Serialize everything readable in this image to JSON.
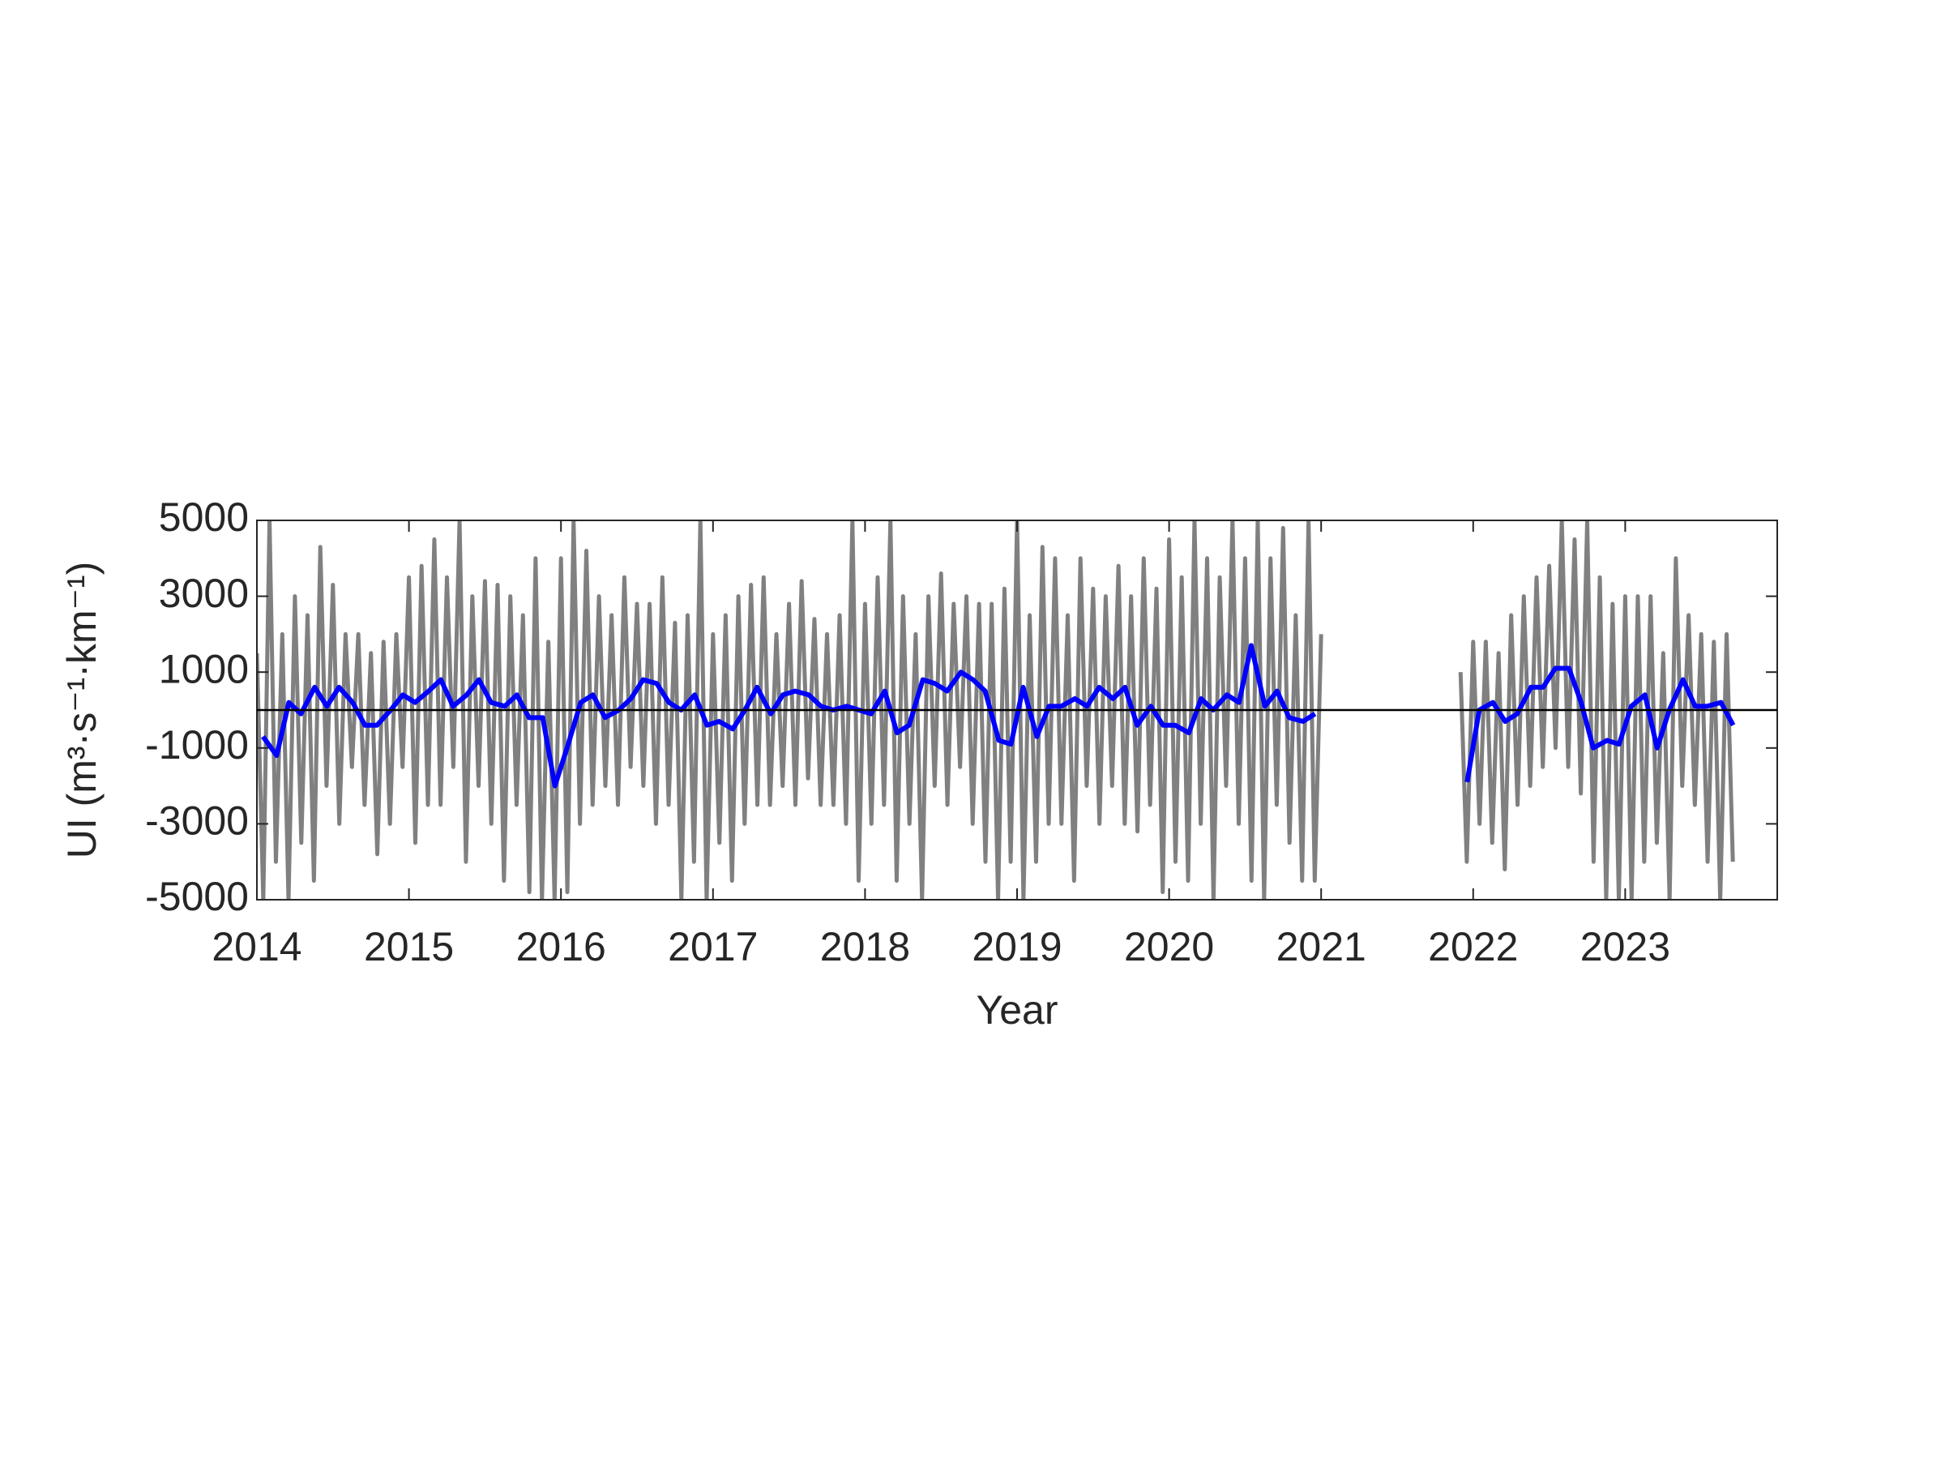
{
  "chart_data": {
    "type": "line",
    "xlabel": "Year",
    "ylabel": "UI (m³·s⁻¹·km⁻¹)",
    "xlim": [
      2014,
      2024
    ],
    "ylim": [
      -5000,
      5000
    ],
    "xticks": [
      2014,
      2015,
      2016,
      2017,
      2018,
      2019,
      2020,
      2021,
      2022,
      2023
    ],
    "yticks": [
      -5000,
      -3000,
      -1000,
      1000,
      3000,
      5000
    ],
    "hline": 0,
    "series": [
      {
        "color": "#808080",
        "x": [
          2014,
          2014.042,
          2014.083,
          2014.125,
          2014.167,
          2014.208,
          2014.25,
          2014.292,
          2014.333,
          2014.375,
          2014.417,
          2014.458,
          2014.5,
          2014.542,
          2014.583,
          2014.625,
          2014.667,
          2014.708,
          2014.75,
          2014.792,
          2014.833,
          2014.875,
          2014.917,
          2014.958,
          2015,
          2015.042,
          2015.083,
          2015.125,
          2015.167,
          2015.208,
          2015.25,
          2015.292,
          2015.333,
          2015.375,
          2015.417,
          2015.458,
          2015.5,
          2015.542,
          2015.583,
          2015.625,
          2015.667,
          2015.708,
          2015.75,
          2015.792,
          2015.833,
          2015.875,
          2015.917,
          2015.958,
          2016,
          2016.042,
          2016.083,
          2016.125,
          2016.167,
          2016.208,
          2016.25,
          2016.292,
          2016.333,
          2016.375,
          2016.417,
          2016.458,
          2016.5,
          2016.542,
          2016.583,
          2016.625,
          2016.667,
          2016.708,
          2016.75,
          2016.792,
          2016.833,
          2016.875,
          2016.917,
          2016.958,
          2017,
          2017.042,
          2017.083,
          2017.125,
          2017.167,
          2017.208,
          2017.25,
          2017.292,
          2017.333,
          2017.375,
          2017.417,
          2017.458,
          2017.5,
          2017.542,
          2017.583,
          2017.625,
          2017.667,
          2017.708,
          2017.75,
          2017.792,
          2017.833,
          2017.875,
          2017.917,
          2017.958,
          2018,
          2018.042,
          2018.083,
          2018.125,
          2018.167,
          2018.208,
          2018.25,
          2018.292,
          2018.333,
          2018.375,
          2018.417,
          2018.458,
          2018.5,
          2018.542,
          2018.583,
          2018.625,
          2018.667,
          2018.708,
          2018.75,
          2018.792,
          2018.833,
          2018.875,
          2018.917,
          2018.958,
          2019,
          2019.042,
          2019.083,
          2019.125,
          2019.167,
          2019.208,
          2019.25,
          2019.292,
          2019.333,
          2019.375,
          2019.417,
          2019.458,
          2019.5,
          2019.542,
          2019.583,
          2019.625,
          2019.667,
          2019.708,
          2019.75,
          2019.792,
          2019.833,
          2019.875,
          2019.917,
          2019.958,
          2020,
          2020.042,
          2020.083,
          2020.125,
          2020.167,
          2020.208,
          2020.25,
          2020.292,
          2020.333,
          2020.375,
          2020.417,
          2020.458,
          2020.5,
          2020.542,
          2020.583,
          2020.625,
          2020.667,
          2020.708,
          2020.75,
          2020.792,
          2020.833,
          2020.875,
          2020.917,
          2020.958,
          2021,
          2021.5,
          2021.917,
          2021.958,
          2022,
          2022.042,
          2022.083,
          2022.125,
          2022.167,
          2022.208,
          2022.25,
          2022.292,
          2022.333,
          2022.375,
          2022.417,
          2022.458,
          2022.5,
          2022.542,
          2022.583,
          2022.625,
          2022.667,
          2022.708,
          2022.75,
          2022.792,
          2022.833,
          2022.875,
          2022.917,
          2022.958,
          2023,
          2023.042,
          2023.083,
          2023.125,
          2023.167,
          2023.208,
          2023.25,
          2023.292,
          2023.333,
          2023.375,
          2023.417,
          2023.458,
          2023.5,
          2023.542,
          2023.583,
          2023.625,
          2023.667,
          2023.708
        ],
        "values": [
          1500,
          -5000,
          5000,
          -4000,
          2000,
          -5000,
          3000,
          -3500,
          2500,
          -4500,
          4300,
          -2000,
          3300,
          -3000,
          2000,
          -1500,
          2000,
          -2500,
          1500,
          -3800,
          1800,
          -3000,
          2000,
          -1500,
          3500,
          -3500,
          3800,
          -2500,
          4500,
          -2500,
          3500,
          -1500,
          5000,
          -4000,
          3000,
          -2000,
          3400,
          -3000,
          3300,
          -4500,
          3000,
          -2500,
          2500,
          -4800,
          4000,
          -5000,
          1800,
          -5000,
          4000,
          -4800,
          5000,
          -3000,
          4200,
          -2500,
          3000,
          -2000,
          2500,
          -2500,
          3500,
          -1500,
          2800,
          -2000,
          2800,
          -3000,
          3500,
          -2500,
          2300,
          -5000,
          2500,
          -4000,
          5000,
          -5000,
          2000,
          -3500,
          2500,
          -4500,
          3000,
          -3000,
          3300,
          -2500,
          3500,
          -2500,
          2000,
          -2000,
          2800,
          -2500,
          3400,
          -1800,
          2400,
          -2500,
          2000,
          -2500,
          2500,
          -3000,
          5000,
          -4500,
          2800,
          -3000,
          3500,
          -2500,
          5000,
          -4500,
          3000,
          -3000,
          2000,
          -5000,
          3000,
          -2000,
          3600,
          -2500,
          2800,
          -1500,
          3000,
          -3000,
          2800,
          -4000,
          2800,
          -5000,
          3200,
          -4000,
          5000,
          -5000,
          2500,
          -4000,
          4300,
          -3000,
          4000,
          -3000,
          2500,
          -4500,
          4000,
          -2000,
          3200,
          -3000,
          3000,
          -2000,
          3800,
          -3000,
          3000,
          -3200,
          4000,
          -2500,
          3200,
          -4800,
          4500,
          -4000,
          3500,
          -4500,
          5000,
          -3000,
          4000,
          -5000,
          3500,
          -2000,
          5000,
          -3000,
          4000,
          -4500,
          5000,
          -5000,
          4000,
          -2500,
          4800,
          -3500,
          2500,
          -4500,
          5000,
          -4500,
          2000,
          null,
          1000,
          -4000,
          1800,
          -3000,
          1800,
          -3500,
          1500,
          -4200,
          2500,
          -2500,
          3000,
          -2000,
          3500,
          -1500,
          3800,
          -1000,
          5000,
          -1500,
          4500,
          -2200,
          5000,
          -4000,
          3500,
          -5000,
          2800,
          -5000,
          3000,
          -5000,
          3000,
          -4000,
          3000,
          -3500,
          1500,
          -5000,
          4000,
          -2000,
          2500,
          -2500,
          2000,
          -4000,
          1800,
          -5000,
          2000,
          -4000
        ]
      },
      {
        "color": "#0000ff",
        "x": [
          2014.04,
          2014.13,
          2014.21,
          2014.29,
          2014.38,
          2014.46,
          2014.54,
          2014.63,
          2014.71,
          2014.79,
          2014.88,
          2014.96,
          2015.04,
          2015.13,
          2015.21,
          2015.29,
          2015.38,
          2015.46,
          2015.54,
          2015.63,
          2015.71,
          2015.79,
          2015.88,
          2015.96,
          2016.04,
          2016.13,
          2016.21,
          2016.29,
          2016.38,
          2016.46,
          2016.54,
          2016.63,
          2016.71,
          2016.79,
          2016.88,
          2016.96,
          2017.04,
          2017.13,
          2017.21,
          2017.29,
          2017.38,
          2017.46,
          2017.54,
          2017.63,
          2017.71,
          2017.79,
          2017.88,
          2017.96,
          2018.04,
          2018.13,
          2018.21,
          2018.29,
          2018.38,
          2018.46,
          2018.54,
          2018.63,
          2018.71,
          2018.79,
          2018.88,
          2018.96,
          2019.04,
          2019.13,
          2019.21,
          2019.29,
          2019.38,
          2019.46,
          2019.54,
          2019.63,
          2019.71,
          2019.79,
          2019.88,
          2019.96,
          2020.04,
          2020.13,
          2020.21,
          2020.29,
          2020.38,
          2020.46,
          2020.54,
          2020.63,
          2020.71,
          2020.79,
          2020.88,
          2020.96,
          2021.5,
          2021.96,
          2022.04,
          2022.13,
          2022.21,
          2022.29,
          2022.38,
          2022.46,
          2022.54,
          2022.63,
          2022.71,
          2022.79,
          2022.88,
          2022.96,
          2023.04,
          2023.13,
          2023.21,
          2023.29,
          2023.38,
          2023.46,
          2023.54,
          2023.63,
          2023.71
        ],
        "values": [
          -700,
          -1200,
          200,
          -100,
          600,
          100,
          600,
          200,
          -400,
          -400,
          0,
          400,
          200,
          500,
          800,
          100,
          400,
          800,
          200,
          100,
          400,
          -200,
          -200,
          -2000,
          -1000,
          200,
          400,
          -200,
          0,
          300,
          800,
          700,
          200,
          0,
          400,
          -400,
          -300,
          -500,
          0,
          600,
          -100,
          400,
          500,
          400,
          100,
          0,
          100,
          0,
          -100,
          500,
          -600,
          -400,
          800,
          700,
          500,
          1000,
          800,
          500,
          -800,
          -900,
          600,
          -700,
          100,
          100,
          300,
          100,
          600,
          300,
          600,
          -400,
          100,
          -400,
          -400,
          -600,
          300,
          0,
          400,
          200,
          1700,
          100,
          500,
          -200,
          -300,
          -100,
          null,
          -1900,
          0,
          200,
          -300,
          -100,
          600,
          600,
          1100,
          1100,
          200,
          -1000,
          -800,
          -900,
          100,
          400,
          -1000,
          0,
          800,
          100,
          100,
          200,
          -400
        ]
      }
    ]
  }
}
